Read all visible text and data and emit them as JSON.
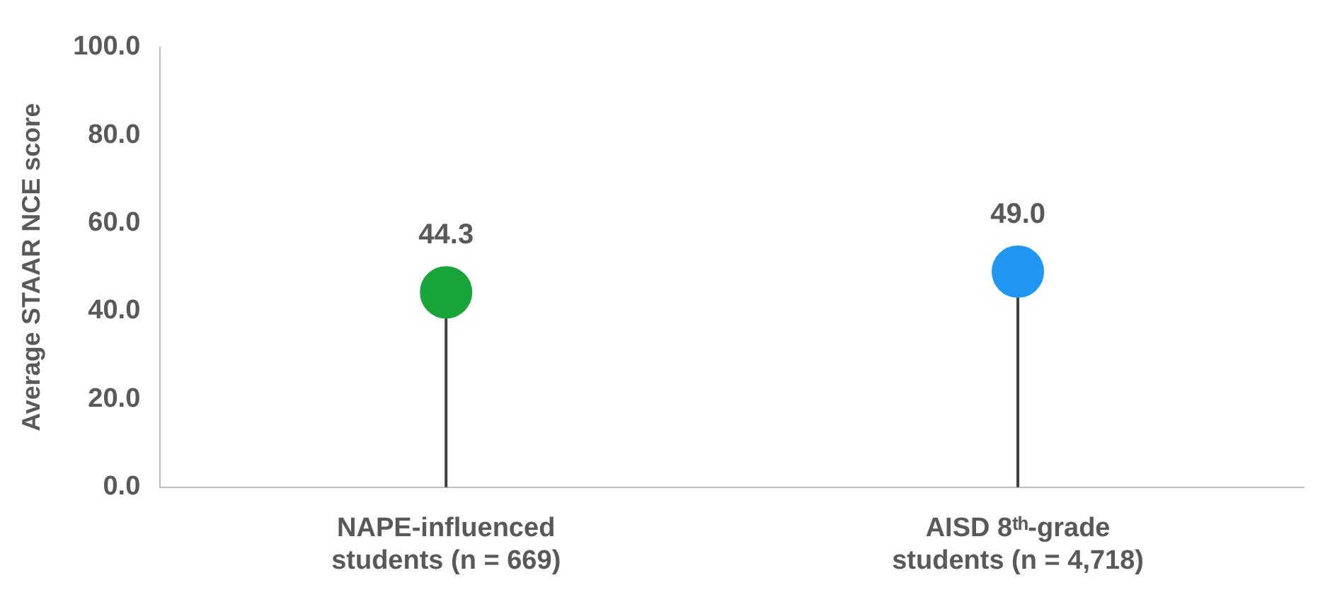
{
  "chart_data": {
    "type": "lollipop",
    "ylabel": "Average STAAR NCE score",
    "categories": [
      "NAPE-influenced students (n = 669)",
      "AISD 8ᵗʰ-grade students (n = 4,718)"
    ],
    "values": [
      44.3,
      49.0
    ],
    "colors": [
      "#1aa53a",
      "#2196f3"
    ],
    "value_labels": [
      "44.3",
      "49.0"
    ],
    "ylim": [
      0,
      100
    ],
    "yticks": [
      {
        "value": 0,
        "label": "0.0"
      },
      {
        "value": 20,
        "label": "20.0"
      },
      {
        "value": 40,
        "label": "40.0"
      },
      {
        "value": 60,
        "label": "60.0"
      },
      {
        "value": 80,
        "label": "80.0"
      },
      {
        "value": 100,
        "label": "100.0"
      }
    ],
    "grid": false,
    "legend": false,
    "marker": "circle"
  }
}
